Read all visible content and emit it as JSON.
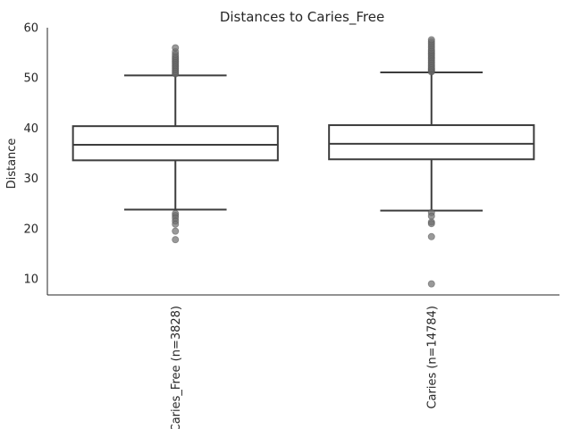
{
  "chart_data": {
    "type": "box",
    "title": "Distances to Caries_Free",
    "xlabel": "",
    "ylabel": "Distance",
    "ylim": [
      6.8,
      60
    ],
    "yticks": [
      10,
      20,
      30,
      40,
      50,
      60
    ],
    "grid": false,
    "categories": [
      "Caries_Free (n=3828)",
      "Caries (n=14784)"
    ],
    "boxes": [
      {
        "name": "Caries_Free (n=3828)",
        "whislo": 23.8,
        "q1": 33.6,
        "med": 36.7,
        "q3": 40.4,
        "whishi": 50.5,
        "fliers": [
          50.8,
          51.0,
          51.3,
          51.6,
          51.9,
          52.2,
          52.5,
          52.8,
          53.1,
          53.4,
          53.7,
          54.0,
          54.3,
          54.7,
          55.2,
          56.0,
          23.0,
          22.6,
          22.1,
          21.5,
          20.9,
          19.5,
          17.8
        ]
      },
      {
        "name": "Caries (n=14784)",
        "whislo": 23.6,
        "q1": 33.8,
        "med": 36.9,
        "q3": 40.6,
        "whishi": 51.1,
        "fliers": [
          51.2,
          51.4,
          51.6,
          51.8,
          52.0,
          52.3,
          52.6,
          52.9,
          53.2,
          53.5,
          53.8,
          54.1,
          54.4,
          54.7,
          55.0,
          55.3,
          55.6,
          56.0,
          56.4,
          56.8,
          57.2,
          57.6,
          23.2,
          22.5,
          21.3,
          21.0,
          18.4,
          9.0
        ]
      }
    ]
  }
}
